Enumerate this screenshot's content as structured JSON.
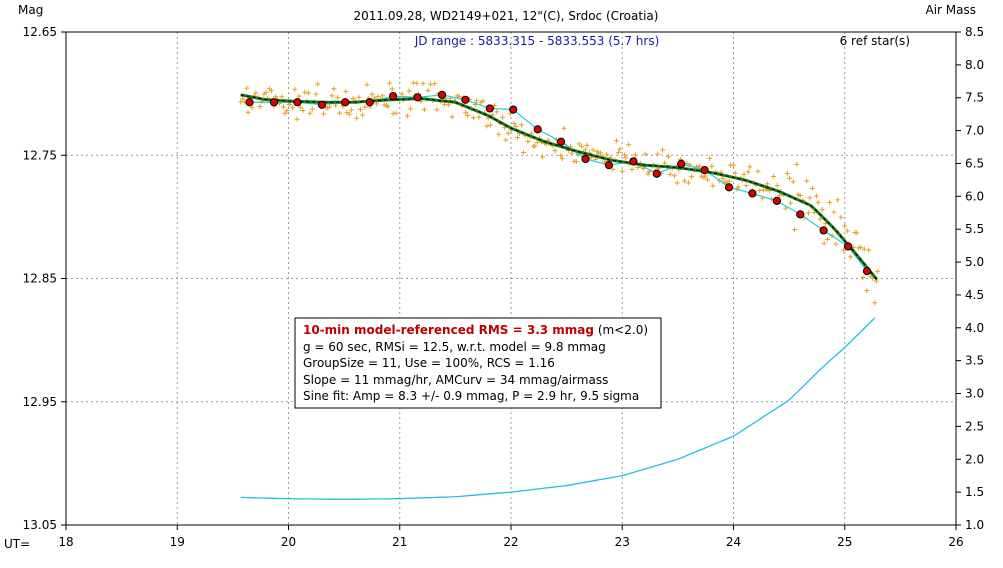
{
  "chart_data": {
    "type": "scatter",
    "title": "2011.09.28, WD2149+021, 12\"(C), Srdoc (Croatia)",
    "ylabel_left": "Mag",
    "ylabel_right": "Air Mass",
    "xlabel": "UT=",
    "jd_range_label": "JD range : 5833.315 - 5833.553 (5.7 hrs)",
    "ref_stars_label": "6 ref star(s)",
    "xlim": [
      18,
      26
    ],
    "ylim_mag": [
      13.05,
      12.65
    ],
    "ylim_airmass": [
      1.0,
      8.5
    ],
    "x_ticks": [
      "18",
      "19",
      "20",
      "21",
      "22",
      "23",
      "24",
      "25",
      "26"
    ],
    "y_ticks_left": [
      "12.65",
      "12.75",
      "12.85",
      "12.95",
      "13.05"
    ],
    "y_ticks_right": [
      "8.5",
      "8.0",
      "7.5",
      "7.0",
      "6.5",
      "6.0",
      "5.5",
      "5.0",
      "4.5",
      "4.0",
      "3.5",
      "3.0",
      "2.5",
      "2.0",
      "1.5",
      "1.0"
    ],
    "grid": true,
    "colors": {
      "raw": "#e8a020",
      "binned_fill": "#dd0000",
      "model": "#1f7a1f",
      "model_dash": "#000000",
      "fine_fit": "#22d0e0",
      "airmass": "#22c0e0",
      "grid": "#9a9a9a"
    },
    "series": [
      {
        "name": "group averages",
        "x": [
          19.65,
          19.87,
          20.08,
          20.3,
          20.51,
          20.73,
          20.94,
          21.16,
          21.38,
          21.59,
          21.81,
          22.02,
          22.24,
          22.45,
          22.67,
          22.88,
          23.1,
          23.31,
          23.53,
          23.74,
          23.96,
          24.17,
          24.39,
          24.6,
          24.81,
          25.03,
          25.2
        ],
        "y": [
          12.707,
          12.707,
          12.707,
          12.709,
          12.707,
          12.707,
          12.702,
          12.703,
          12.701,
          12.705,
          12.712,
          12.713,
          12.729,
          12.739,
          12.753,
          12.758,
          12.755,
          12.765,
          12.757,
          12.762,
          12.776,
          12.781,
          12.787,
          12.798,
          12.811,
          12.824,
          12.844
        ]
      },
      {
        "name": "model",
        "x": [
          19.57,
          19.8,
          20.0,
          20.3,
          20.6,
          20.9,
          21.2,
          21.5,
          21.8,
          22.0,
          22.3,
          22.6,
          22.9,
          23.2,
          23.5,
          23.8,
          24.1,
          24.4,
          24.7,
          24.9,
          25.1,
          25.3
        ],
        "y": [
          12.701,
          12.705,
          12.706,
          12.707,
          12.707,
          12.705,
          12.704,
          12.707,
          12.718,
          12.728,
          12.739,
          12.747,
          12.754,
          12.758,
          12.76,
          12.764,
          12.77,
          12.779,
          12.791,
          12.809,
          12.83,
          12.852
        ]
      },
      {
        "name": "air mass",
        "x": [
          19.57,
          20.0,
          20.5,
          21.0,
          21.5,
          22.0,
          22.5,
          23.0,
          23.5,
          24.0,
          24.5,
          24.8,
          25.0,
          25.3
        ],
        "y": [
          1.42,
          1.4,
          1.39,
          1.4,
          1.43,
          1.5,
          1.6,
          1.75,
          2.0,
          2.35,
          2.9,
          3.4,
          3.7,
          4.2
        ]
      }
    ]
  },
  "stats_box": {
    "line1_highlight": "10-min model-referenced RMS = 3.3 mmag",
    "line1_rest": " (m<2.0)",
    "line2": "g = 60 sec, RMSi = 12.5, w.r.t. model = 9.8 mmag",
    "line3": "GroupSize = 11, Use = 100%, RCS = 1.16",
    "line4": "Slope = 11 mmag/hr, AMCurv = 34 mmag/airmass",
    "line5": "Sine fit: Amp = 8.3 +/- 0.9 mmag, P = 2.9 hr, 9.5 sigma"
  }
}
